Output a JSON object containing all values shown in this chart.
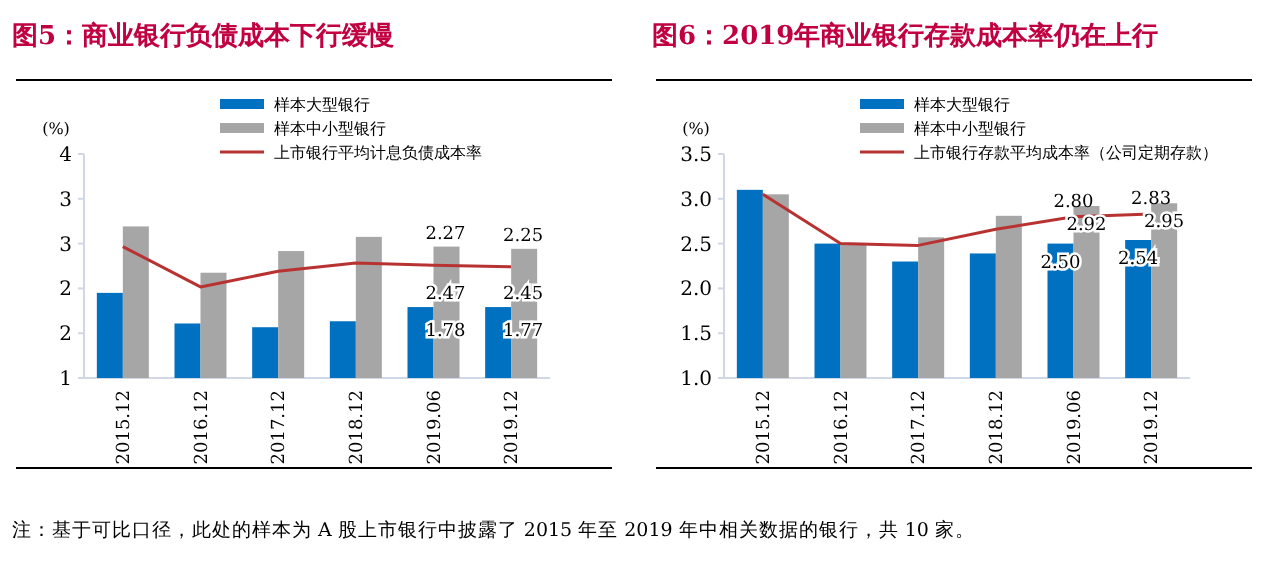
{
  "chart_data": [
    {
      "type": "bar",
      "title": "图5：商业银行负债成本下行缓慢",
      "ylabel": "(%)",
      "categories": [
        "2015.12",
        "2016.12",
        "2017.12",
        "2018.12",
        "2019.06",
        "2019.12"
      ],
      "series": [
        {
          "name": "样本大型银行",
          "color": "#0070c0",
          "values": [
            2.14,
            1.73,
            1.68,
            1.76,
            1.95,
            1.95
          ]
        },
        {
          "name": "样本中小型银行",
          "color": "#a6a6a6",
          "values": [
            3.03,
            2.41,
            2.7,
            2.89,
            2.76,
            2.73
          ]
        },
        {
          "name": "上市银行平均计息负债成本率",
          "type": "line",
          "color": "#b83232",
          "values": [
            2.76,
            2.22,
            2.43,
            2.54,
            2.51,
            2.49
          ]
        }
      ],
      "ylim": [
        1,
        4
      ],
      "yticks": [
        1,
        {
          "value": 1.6,
          "label": "2"
        },
        {
          "value": 2.2,
          "label": "2"
        },
        {
          "value": 2.8,
          "label": "3"
        },
        {
          "value": 3.4,
          "label": "3"
        },
        4
      ],
      "legend": "top",
      "annotations": [
        {
          "text": "2.27",
          "x": "2019.06",
          "y": 2.76
        },
        {
          "text": "2.25",
          "x": "2019.12",
          "y": 2.73
        },
        {
          "text": "2.47",
          "x": "2019.06",
          "y": 1.95
        },
        {
          "text": "2.45",
          "x": "2019.12",
          "y": 1.95
        },
        {
          "text": "1.78",
          "x": "2019.06",
          "y": 1.46
        },
        {
          "text": "1.77",
          "x": "2019.12",
          "y": 1.46
        }
      ]
    },
    {
      "type": "bar",
      "title": "图6：2019年商业银行存款成本率仍在上行",
      "ylabel": "(%)",
      "categories": [
        "2015.12",
        "2016.12",
        "2017.12",
        "2018.12",
        "2019.06",
        "2019.12"
      ],
      "series": [
        {
          "name": "样本大型银行",
          "color": "#0070c0",
          "values": [
            3.1,
            2.5,
            2.3,
            2.39,
            2.5,
            2.54
          ],
          "value_labels": [
            null,
            null,
            null,
            null,
            "2.50",
            "2.54"
          ]
        },
        {
          "name": "样本中小型银行",
          "color": "#a6a6a6",
          "values": [
            3.05,
            2.5,
            2.57,
            2.81,
            2.92,
            2.95
          ],
          "value_labels": [
            null,
            null,
            null,
            null,
            "2.92",
            "2.95"
          ]
        },
        {
          "name": "上市银行存款平均成本率（公司定期存款）",
          "type": "line",
          "color": "#b83232",
          "values": [
            3.05,
            2.5,
            2.48,
            2.66,
            2.8,
            2.83
          ],
          "value_labels": [
            null,
            null,
            null,
            null,
            "2.80",
            "2.83"
          ]
        }
      ],
      "ylim": [
        1,
        3.5
      ],
      "yticks": [
        {
          "value": 1,
          "label": "1.0"
        },
        {
          "value": 1.5,
          "label": "1.5"
        },
        {
          "value": 2,
          "label": "2.0"
        },
        {
          "value": 2.5,
          "label": "2.5"
        },
        {
          "value": 3,
          "label": "3.0"
        },
        {
          "value": 3.5,
          "label": "3.5"
        }
      ],
      "legend": "top",
      "annotations": [
        "注：基于可比口径，此处的样本为 A 股上市银行中披露了 2015 年至 2019 年中相关数据的银行，共 10 家。"
      ]
    }
  ]
}
